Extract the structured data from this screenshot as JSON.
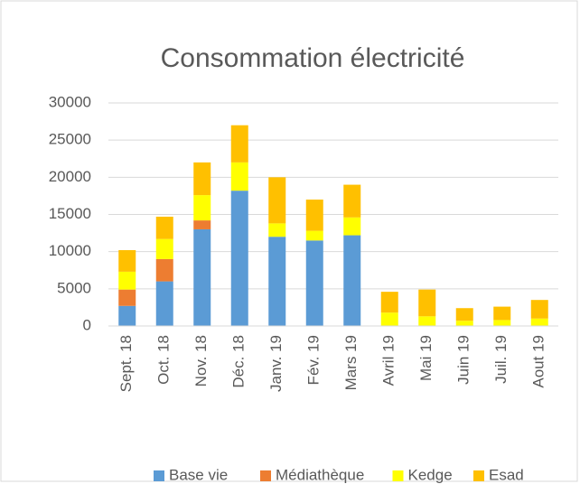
{
  "chart_data": {
    "type": "bar",
    "stacked": true,
    "title": "Consommation électricité",
    "categories": [
      "Sept. 18",
      "Oct. 18",
      "Nov. 18",
      "Déc. 18",
      "Janv. 19",
      "Fév. 19",
      "Mars 19",
      "Avril 19",
      "Mai 19",
      "Juin 19",
      "Juil. 19",
      "Aout 19"
    ],
    "series": [
      {
        "name": "Base vie",
        "color": "#5b9bd5",
        "values": [
          2700,
          6000,
          13000,
          18200,
          12000,
          11500,
          12200,
          0,
          0,
          0,
          0,
          0
        ]
      },
      {
        "name": "Médiathèque",
        "color": "#ed7d31",
        "values": [
          2200,
          3000,
          1200,
          0,
          0,
          0,
          0,
          0,
          0,
          0,
          0,
          0
        ]
      },
      {
        "name": "Kedge",
        "color": "#ffff00",
        "values": [
          2400,
          2700,
          3400,
          3800,
          1800,
          1300,
          2400,
          1800,
          1300,
          700,
          800,
          1000
        ]
      },
      {
        "name": "Esad",
        "color": "#ffc000",
        "values": [
          2900,
          3000,
          4400,
          5000,
          6200,
          4200,
          4400,
          2800,
          3600,
          1700,
          1800,
          2500
        ]
      }
    ],
    "ylim": [
      0,
      30000
    ],
    "yticks": [
      0,
      5000,
      10000,
      15000,
      20000,
      25000,
      30000
    ],
    "grid": true,
    "legend": "bottom"
  }
}
